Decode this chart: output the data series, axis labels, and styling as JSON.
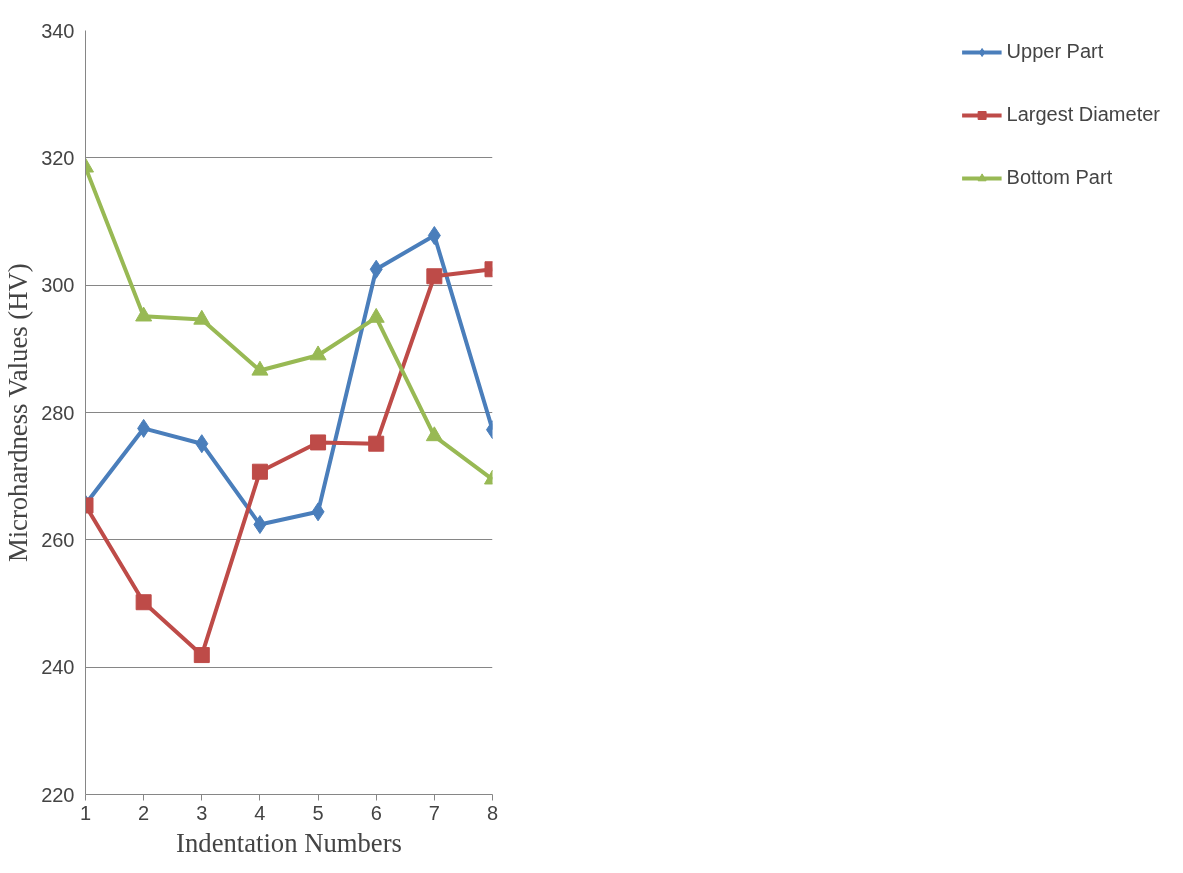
{
  "chart_data": {
    "type": "line",
    "xlabel": "Indentation Numbers",
    "ylabel": "Microhardness Values (HV)",
    "x": [
      1,
      2,
      3,
      4,
      5,
      6,
      7,
      8
    ],
    "xlim": [
      1,
      8
    ],
    "xticks": [
      1,
      2,
      3,
      4,
      5,
      6,
      7,
      8
    ],
    "ylim": [
      220,
      340
    ],
    "yticks": [
      220,
      240,
      260,
      280,
      300,
      320,
      340
    ],
    "grid": "y",
    "legend": "right",
    "line_style": "solid",
    "series": [
      {
        "name": "Upper Part",
        "color": "#4a7ebb",
        "marker": "diamond",
        "values": [
          265.6,
          277.5,
          275.1,
          262.4,
          264.4,
          302.5,
          307.8,
          277.3
        ]
      },
      {
        "name": "Largest Diameter",
        "color": "#be4b48",
        "marker": "square",
        "values": [
          265.4,
          250.2,
          241.9,
          270.7,
          275.3,
          275.1,
          301.4,
          302.5
        ]
      },
      {
        "name": "Bottom Part",
        "color": "#98b954",
        "marker": "triangle",
        "values": [
          318.5,
          295.1,
          294.6,
          286.6,
          289.0,
          294.9,
          276.3,
          269.5
        ]
      }
    ]
  }
}
